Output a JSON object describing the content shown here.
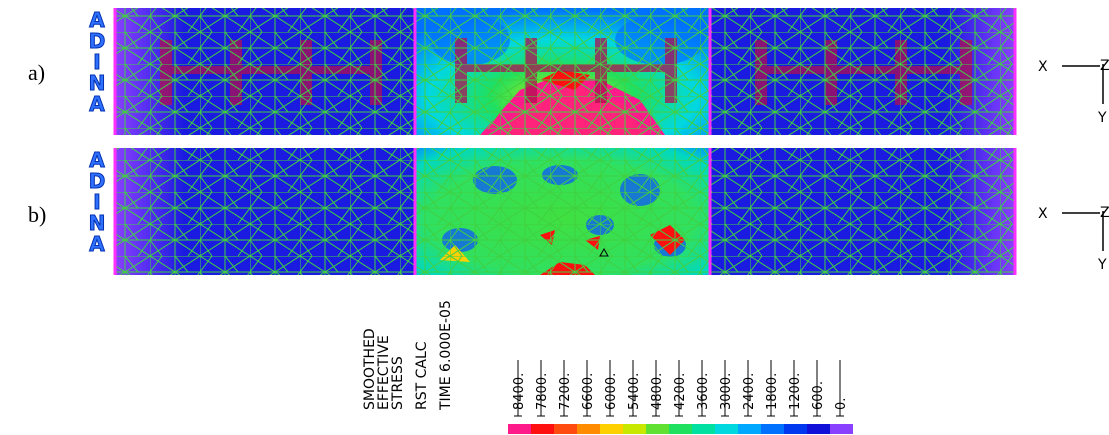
{
  "panels": [
    {
      "label": "a)"
    },
    {
      "label": "b)"
    }
  ],
  "logo": "ADINA",
  "axes": {
    "x": "X",
    "z": "Z",
    "y": "Y"
  },
  "legend": {
    "lines": [
      "SMOOTHED",
      "EFFECTIVE",
      "STRESS",
      "RST CALC",
      "TIME 6.000E-05"
    ],
    "levels": [
      "8400.",
      "7800.",
      "7200.",
      "6600.",
      "6000.",
      "5400.",
      "4800.",
      "4200.",
      "3600.",
      "3000.",
      "2400.",
      "1800.",
      "1200.",
      "600.",
      "0."
    ],
    "colors": [
      "#ff1a8c",
      "#ff1010",
      "#ff4a10",
      "#ff8c00",
      "#ffd000",
      "#c8e800",
      "#60e030",
      "#20e060",
      "#00e0a0",
      "#00d8e0",
      "#00a8ff",
      "#0070ff",
      "#0038f0",
      "#1010d8",
      "#8a40ff"
    ]
  }
}
